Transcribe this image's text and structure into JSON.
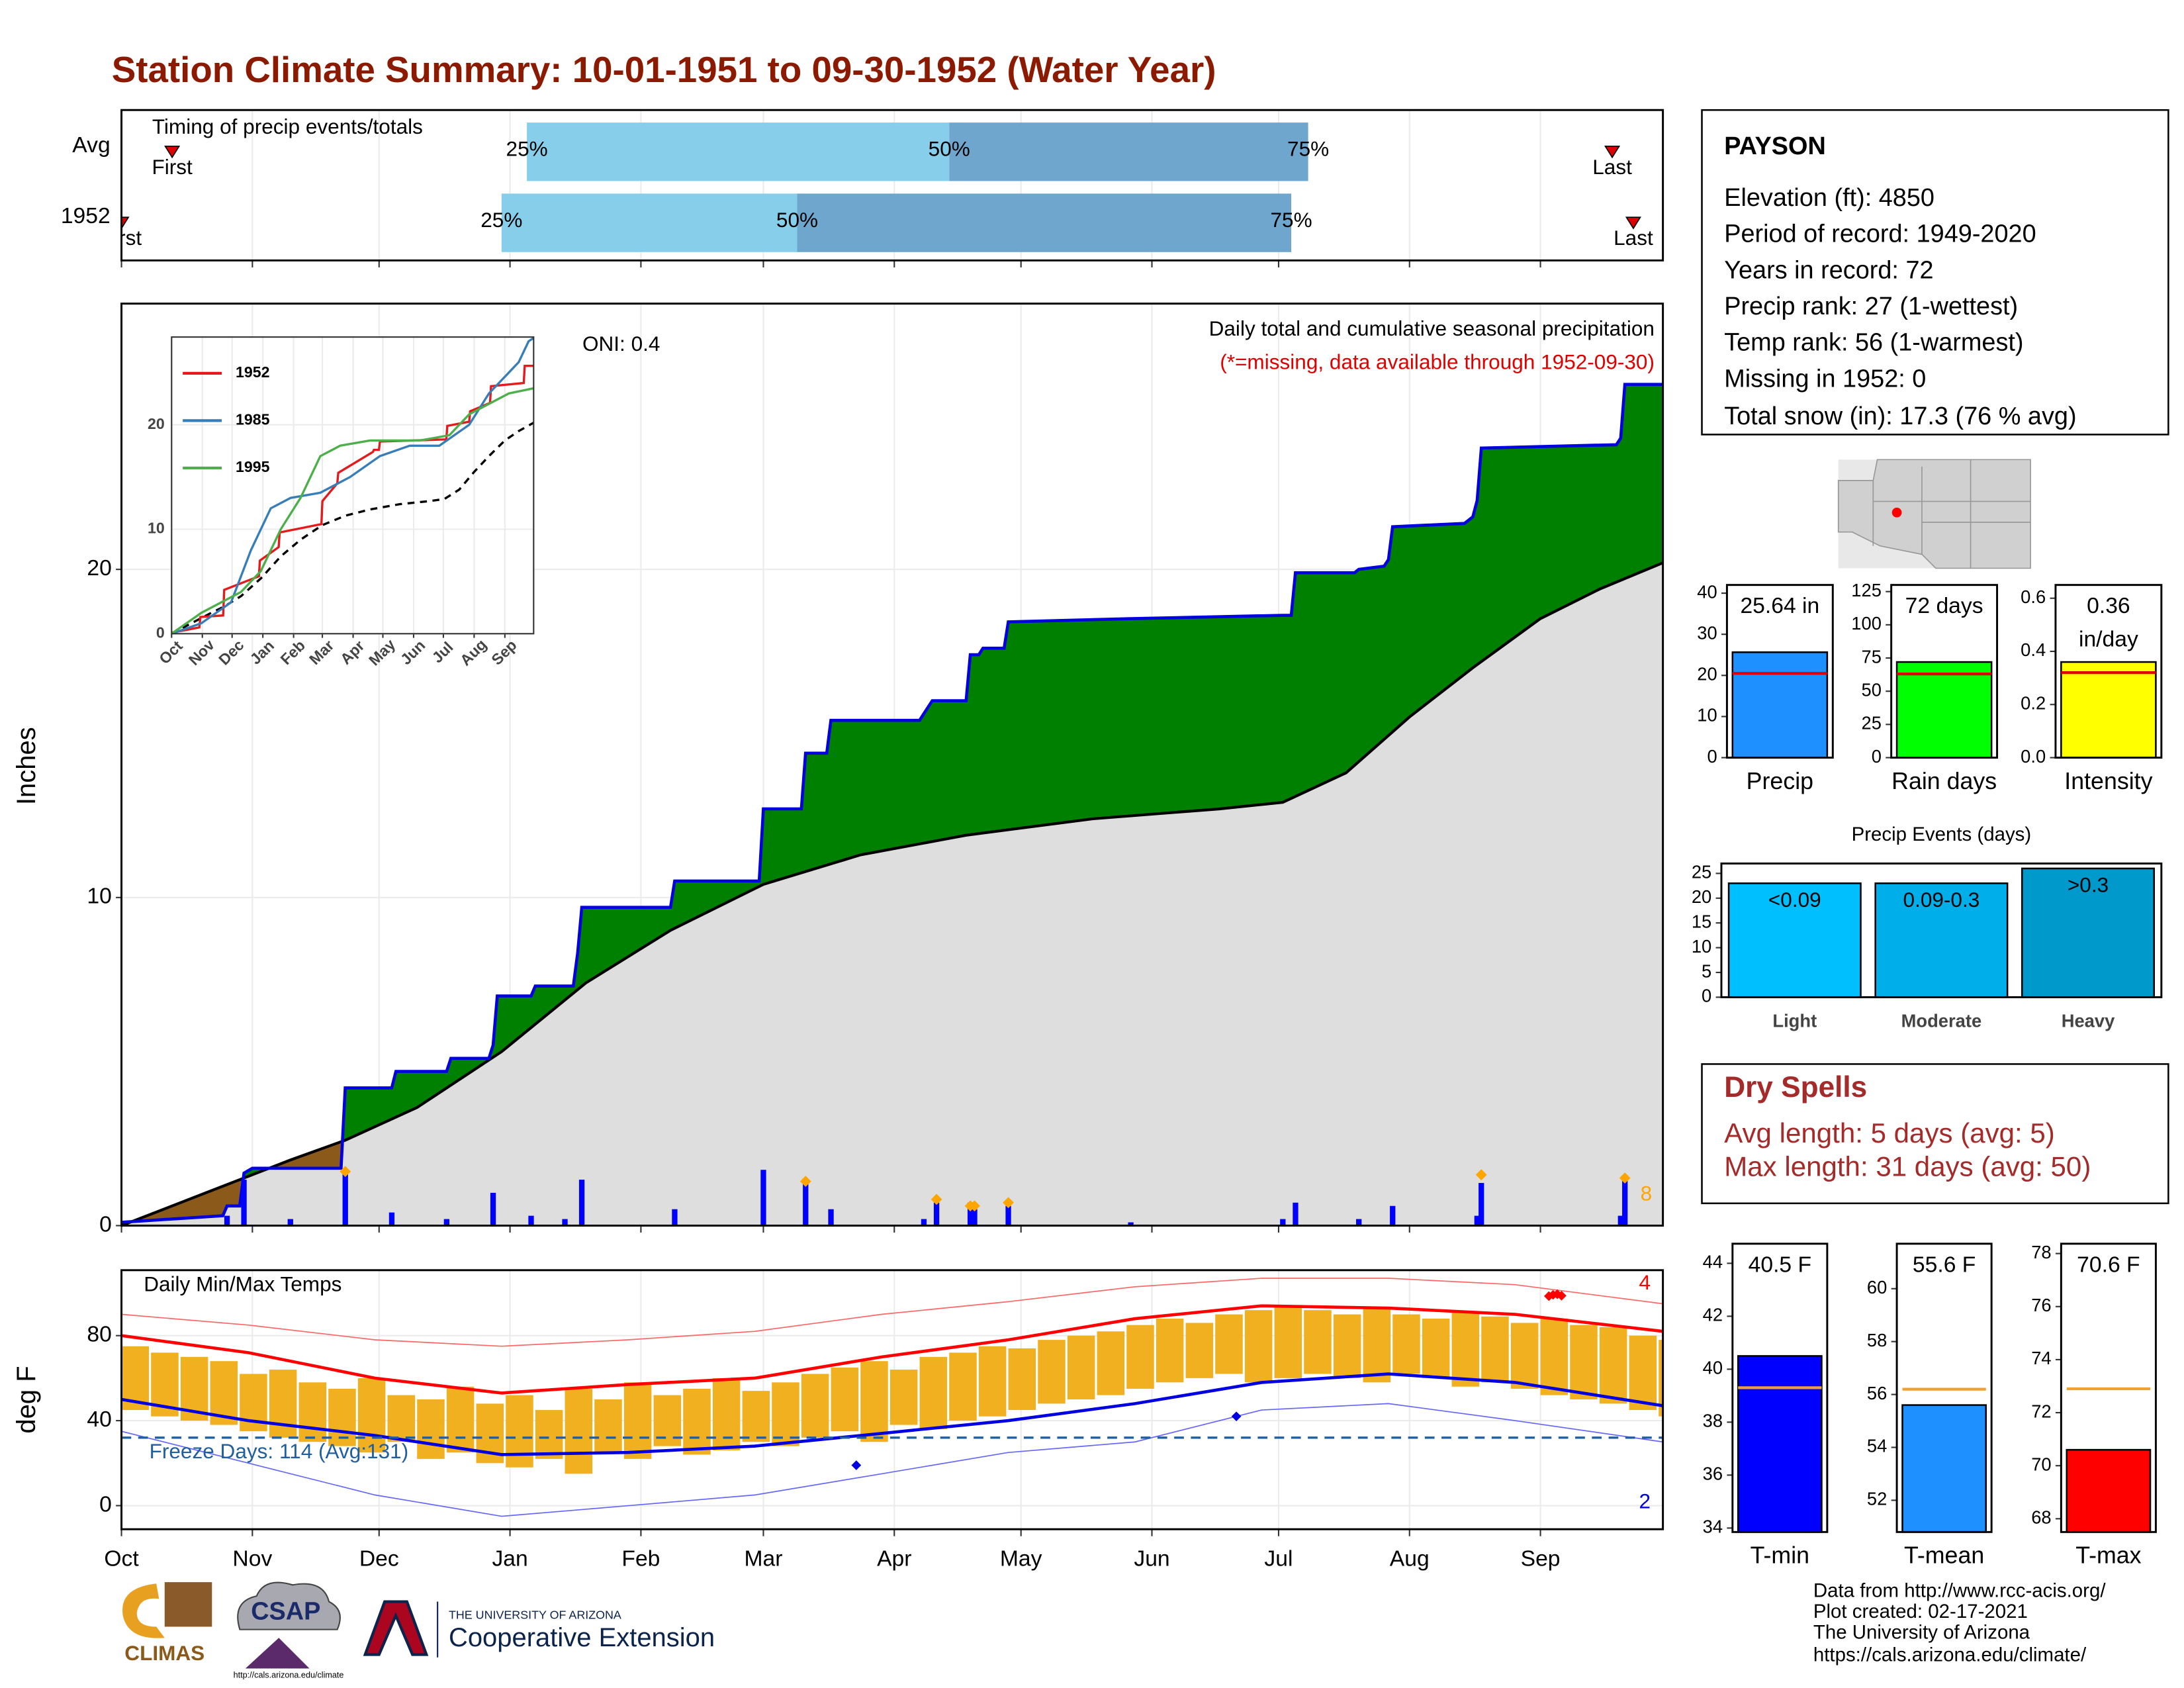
{
  "title": "Station Climate Summary: 10-01-1951 to 09-30-1952 (Water Year)",
  "station": {
    "name": "PAYSON",
    "lines": [
      "Elevation (ft): 4850",
      "Period of record: 1949-2020",
      "Years in record: 72",
      "Precip rank: 27 (1-wettest)",
      "Temp rank: 56 (1-warmest)",
      "Missing in 1952: 0",
      "Total snow (in): 17.3 (76 % avg)"
    ]
  },
  "dry_spells": {
    "title": "Dry Spells",
    "lines": [
      "Avg length: 5 days (avg: 5)",
      "Max length: 31 days (avg: 50)"
    ]
  },
  "footer": [
    "Data from http://www.rcc-acis.org/",
    "Plot created: 02-17-2021",
    "The University of Arizona",
    "https://cals.arizona.edu/climate/"
  ],
  "logos": {
    "climas": "CLIMAS",
    "csap": "CSAP",
    "csap_url": "http://cals.arizona.edu/climate",
    "ua_small": "THE UNIVERSITY OF ARIZONA",
    "ua_big": "Cooperative Extension"
  },
  "chart_data": [
    {
      "type": "timing",
      "title": "Timing of precip events/totals",
      "categories": [
        "Avg",
        "1952"
      ],
      "first": [
        12,
        0
      ],
      "q25": [
        96,
        90
      ],
      "q50": [
        196,
        160
      ],
      "q75": [
        281,
        277
      ],
      "last": [
        353,
        358
      ],
      "quantile_labels": [
        "25%",
        "50%",
        "75%"
      ],
      "end_labels": [
        "First",
        "Last"
      ],
      "colors": [
        "#87ceeb",
        "#6ea6cd"
      ],
      "marker_color": "#e00000",
      "xlim": [
        0,
        365
      ],
      "xticks": [
        0,
        31,
        61,
        92,
        123,
        152,
        183,
        213,
        244,
        274,
        305,
        336
      ],
      "grid": true
    },
    {
      "type": "area",
      "ylabel": "Inches",
      "oni": "ONI: 0.4",
      "subtitle": "Daily total and cumulative seasonal precipitation",
      "note": "(*=missing, data available through 1952-09-30)",
      "count": "8",
      "xlim": [
        0,
        365
      ],
      "xticks": [
        0,
        31,
        61,
        92,
        123,
        152,
        183,
        213,
        244,
        274,
        305,
        336
      ],
      "ylim": [
        0,
        28.1
      ],
      "yticks": [
        0,
        10,
        20
      ],
      "grid": true,
      "cumulative": {
        "color": "#008000",
        "line_color": "#0000e0",
        "x": [
          0,
          24,
          25,
          28,
          29,
          31,
          52,
          53,
          64,
          65,
          77,
          78,
          87,
          88,
          89,
          97,
          98,
          107,
          108,
          109,
          130,
          131,
          151,
          152,
          161,
          162,
          167,
          168,
          189,
          190,
          192,
          200,
          201,
          203,
          204,
          209,
          210,
          239,
          275,
          277,
          278,
          292,
          293,
          299,
          300,
          301,
          318,
          320,
          321,
          322,
          354,
          355,
          356,
          365
        ],
        "values": [
          0.1,
          0.3,
          0.6,
          0.6,
          1.6,
          1.75,
          1.75,
          4.2,
          4.2,
          4.7,
          4.7,
          5.1,
          5.1,
          5.5,
          7.0,
          7.0,
          7.3,
          7.3,
          8.3,
          9.7,
          9.7,
          10.5,
          10.5,
          12.7,
          12.7,
          14.4,
          14.4,
          15.4,
          15.4,
          15.6,
          16.0,
          16.0,
          17.4,
          17.4,
          17.6,
          17.6,
          18.4,
          18.5,
          18.6,
          18.6,
          19.9,
          19.9,
          20.0,
          20.1,
          20.3,
          21.3,
          21.4,
          21.6,
          22.1,
          23.7,
          23.8,
          24.0,
          25.64,
          25.64
        ]
      },
      "average": {
        "color": "#dedede",
        "deficit_color": "#8b5a1a",
        "line_color": "#000000",
        "x": [
          0,
          20,
          40,
          53,
          70,
          90,
          110,
          130,
          152,
          175,
          200,
          230,
          260,
          275,
          290,
          305,
          320,
          336,
          350,
          365
        ],
        "values": [
          0,
          1.0,
          2.0,
          2.6,
          3.6,
          5.3,
          7.4,
          9.0,
          10.4,
          11.3,
          11.9,
          12.4,
          12.7,
          12.9,
          13.8,
          15.5,
          17.0,
          18.5,
          19.4,
          20.2
        ]
      },
      "daily": {
        "color": "#0000ff",
        "x": [
          25,
          29,
          40,
          53,
          64,
          77,
          88,
          97,
          105,
          109,
          131,
          152,
          162,
          168,
          190,
          193,
          201,
          202,
          210,
          239,
          275,
          278,
          293,
          301,
          321,
          322,
          355,
          356
        ],
        "values": [
          0.3,
          1.4,
          0.2,
          1.7,
          0.4,
          0.2,
          1.0,
          0.3,
          0.2,
          1.4,
          0.5,
          1.7,
          1.3,
          0.5,
          0.2,
          0.7,
          0.7,
          0.5,
          0.6,
          0.1,
          0.2,
          0.7,
          0.2,
          0.6,
          0.3,
          1.3,
          0.3,
          1.4
        ]
      },
      "markers": {
        "color": "#ffa500",
        "x": [
          53,
          162,
          193,
          201,
          202,
          210,
          322,
          356
        ],
        "values": [
          1.65,
          1.35,
          0.8,
          0.6,
          0.6,
          0.7,
          1.55,
          1.45
        ]
      }
    },
    {
      "type": "line",
      "xlim": [
        0,
        365
      ],
      "xticks": [
        {
          "value": 0,
          "label": "Oct"
        },
        {
          "value": 31,
          "label": "Nov"
        },
        {
          "value": 61,
          "label": "Dec"
        },
        {
          "value": 92,
          "label": "Jan"
        },
        {
          "value": 123,
          "label": "Feb"
        },
        {
          "value": 152,
          "label": "Mar"
        },
        {
          "value": 183,
          "label": "Apr"
        },
        {
          "value": 213,
          "label": "May"
        },
        {
          "value": 244,
          "label": "Jun"
        },
        {
          "value": 274,
          "label": "Jul"
        },
        {
          "value": 305,
          "label": "Aug"
        },
        {
          "value": 336,
          "label": "Sep"
        }
      ],
      "ylim": [
        0,
        28.4
      ],
      "yticks": [
        0,
        10,
        20
      ],
      "grid": true,
      "series": [
        {
          "name": "1952",
          "color": "#e41a1c",
          "x": [
            0,
            28,
            29,
            52,
            53,
            88,
            89,
            108,
            109,
            151,
            152,
            167,
            168,
            203,
            204,
            209,
            210,
            277,
            278,
            300,
            301,
            321,
            322,
            355,
            356,
            365
          ],
          "values": [
            0.1,
            0.6,
            1.6,
            1.75,
            4.2,
            5.5,
            7.0,
            8.3,
            9.7,
            10.5,
            12.7,
            14.4,
            15.4,
            17.4,
            17.6,
            17.6,
            18.4,
            18.6,
            19.9,
            20.3,
            21.3,
            22.1,
            23.7,
            24.0,
            25.64,
            25.64
          ]
        },
        {
          "name": "1985",
          "color": "#377eb8",
          "x": [
            0,
            30,
            60,
            80,
            100,
            120,
            150,
            180,
            210,
            240,
            270,
            300,
            320,
            340,
            350,
            360,
            365
          ],
          "values": [
            0,
            1,
            3,
            8,
            12,
            13,
            13.5,
            15,
            17,
            18,
            18,
            20,
            23,
            25,
            26,
            28,
            28.3
          ]
        },
        {
          "name": "1995",
          "color": "#4daf4a",
          "x": [
            0,
            30,
            50,
            70,
            90,
            110,
            130,
            150,
            170,
            200,
            250,
            280,
            300,
            320,
            340,
            365
          ],
          "values": [
            0,
            2,
            3,
            4,
            6,
            10,
            13,
            17,
            18,
            18.5,
            18.5,
            19,
            21,
            22,
            23,
            23.5
          ]
        }
      ],
      "average": {
        "color": "#000000",
        "x": [
          0,
          20,
          40,
          53,
          70,
          90,
          110,
          130,
          152,
          175,
          200,
          230,
          260,
          275,
          290,
          305,
          320,
          336,
          350,
          365
        ],
        "values": [
          0,
          1.0,
          2.0,
          2.6,
          3.6,
          5.3,
          7.4,
          9.0,
          10.4,
          11.3,
          11.9,
          12.4,
          12.7,
          12.9,
          13.8,
          15.5,
          17.0,
          18.5,
          19.4,
          20.2
        ]
      }
    },
    {
      "type": "temps",
      "title": "Daily Min/Max Temps",
      "ylabel": "deg F",
      "freeze_label": "Freeze Days: 114 (Avg:131)",
      "max_count": "4",
      "min_count": "2",
      "xlim": [
        0,
        365
      ],
      "xticks": [
        {
          "value": 0,
          "label": "Oct"
        },
        {
          "value": 31,
          "label": "Nov"
        },
        {
          "value": 61,
          "label": "Dec"
        },
        {
          "value": 92,
          "label": "Jan"
        },
        {
          "value": 123,
          "label": "Feb"
        },
        {
          "value": 152,
          "label": "Mar"
        },
        {
          "value": 183,
          "label": "Apr"
        },
        {
          "value": 213,
          "label": "May"
        },
        {
          "value": 244,
          "label": "Jun"
        },
        {
          "value": 274,
          "label": "Jul"
        },
        {
          "value": 305,
          "label": "Aug"
        },
        {
          "value": 336,
          "label": "Sep"
        }
      ],
      "ylim": [
        -11.1,
        110.8
      ],
      "yticks": [
        0,
        40,
        80
      ],
      "grid": true,
      "bars": {
        "color": "#f0b020",
        "x": [
          0,
          7,
          14,
          21,
          28,
          35,
          42,
          49,
          56,
          63,
          70,
          77,
          84,
          91,
          98,
          105,
          112,
          119,
          126,
          133,
          140,
          147,
          154,
          161,
          168,
          175,
          182,
          189,
          196,
          203,
          210,
          217,
          224,
          231,
          238,
          245,
          252,
          259,
          266,
          273,
          280,
          287,
          294,
          301,
          308,
          315,
          322,
          329,
          336,
          343,
          350,
          357,
          364
        ],
        "min": [
          45,
          42,
          40,
          38,
          35,
          32,
          30,
          28,
          25,
          30,
          22,
          25,
          20,
          18,
          22,
          15,
          25,
          22,
          28,
          24,
          26,
          30,
          28,
          32,
          35,
          30,
          38,
          36,
          40,
          42,
          45,
          48,
          50,
          52,
          55,
          58,
          60,
          62,
          58,
          60,
          62,
          60,
          58,
          62,
          60,
          56,
          58,
          55,
          52,
          50,
          48,
          45,
          42
        ],
        "max": [
          75,
          72,
          70,
          68,
          62,
          64,
          58,
          55,
          60,
          52,
          50,
          56,
          48,
          52,
          45,
          55,
          50,
          58,
          52,
          55,
          60,
          54,
          58,
          62,
          65,
          68,
          64,
          70,
          72,
          75,
          74,
          78,
          80,
          82,
          85,
          88,
          86,
          90,
          92,
          94,
          92,
          90,
          93,
          90,
          88,
          91,
          89,
          86,
          88,
          85,
          84,
          80,
          78
        ]
      },
      "avg_max": {
        "color": "#ff0000",
        "x": [
          0,
          30,
          60,
          90,
          120,
          150,
          180,
          210,
          240,
          270,
          300,
          330,
          365
        ],
        "values": [
          80,
          72,
          60,
          53,
          57,
          60,
          70,
          78,
          88,
          94,
          93,
          90,
          82
        ]
      },
      "avg_min": {
        "color": "#0000e0",
        "x": [
          0,
          30,
          60,
          90,
          120,
          150,
          180,
          210,
          240,
          270,
          300,
          330,
          365
        ],
        "values": [
          50,
          40,
          33,
          24,
          25,
          28,
          34,
          40,
          48,
          58,
          62,
          58,
          47
        ]
      },
      "record_max": {
        "color": "#ff6666",
        "x": [
          0,
          30,
          60,
          90,
          120,
          150,
          180,
          210,
          240,
          270,
          300,
          330,
          365
        ],
        "values": [
          90,
          85,
          78,
          75,
          78,
          82,
          90,
          96,
          103,
          107,
          107,
          104,
          95
        ]
      },
      "record_min": {
        "color": "#6666ff",
        "x": [
          0,
          30,
          60,
          90,
          120,
          150,
          180,
          210,
          240,
          270,
          300,
          330,
          365
        ],
        "values": [
          35,
          20,
          5,
          -5,
          0,
          5,
          15,
          25,
          30,
          45,
          48,
          40,
          30
        ]
      },
      "record_high_marks": {
        "color": "#ff0000",
        "x": [
          338,
          339,
          340,
          341
        ],
        "values": [
          98.6,
          99.2,
          99.5,
          98.8
        ]
      },
      "record_low_marks": {
        "color": "#0000e0",
        "x": [
          174,
          264
        ],
        "values": [
          19,
          42
        ]
      },
      "freeze": {
        "value": 32,
        "color": "#1f5fa0"
      }
    },
    {
      "type": "gauge",
      "category": "Precip",
      "value": 25.64,
      "value_label": [
        "25.64 in"
      ],
      "avg": 20.5,
      "color": "#1e90ff",
      "avg_color": "#e00000",
      "ylim": [
        0,
        42
      ],
      "yticks": [
        0,
        10,
        20,
        30,
        40
      ]
    },
    {
      "type": "gauge",
      "category": "Rain days",
      "value": 72,
      "value_label": [
        "72 days"
      ],
      "avg": 63,
      "color": "#00ff00",
      "avg_color": "#e00000",
      "ylim": [
        0,
        130
      ],
      "yticks": [
        0,
        25,
        50,
        75,
        100,
        125
      ]
    },
    {
      "type": "gauge",
      "category": "Intensity",
      "value": 0.36,
      "value_label": [
        "0.36",
        "in/day"
      ],
      "avg": 0.32,
      "color": "#ffff00",
      "avg_color": "#e00000",
      "ylim": [
        0,
        0.65
      ],
      "yticks": [
        {
          "value": 0,
          "label": "0.0"
        },
        0.2,
        0.4,
        0.6
      ]
    },
    {
      "type": "bar",
      "title": "Precip Events (days)",
      "categories": [
        "Light",
        "Moderate",
        "Heavy"
      ],
      "values": [
        23,
        23,
        26
      ],
      "value_labels": [
        "<0.09",
        "0.09-0.3",
        ">0.3"
      ],
      "colors": [
        "#00bfff",
        "#00aeea",
        "#0099cc"
      ],
      "ylim": [
        0,
        27
      ],
      "yticks": [
        0,
        5,
        10,
        15,
        20,
        25
      ]
    },
    {
      "type": "gauge",
      "category": "T-min",
      "value": 40.5,
      "value_label": [
        "40.5 F"
      ],
      "avg": 39.3,
      "color": "#0000ff",
      "avg_color": "#f0a030",
      "ylim": [
        33.85,
        44.74
      ],
      "yticks": [
        34,
        36,
        38,
        40,
        42,
        44
      ]
    },
    {
      "type": "gauge",
      "category": "T-mean",
      "value": 55.6,
      "value_label": [
        "55.6 F"
      ],
      "avg": 56.2,
      "color": "#1e90ff",
      "avg_color": "#f0a030",
      "ylim": [
        50.8,
        61.7
      ],
      "yticks": [
        52,
        54,
        56,
        58,
        60
      ]
    },
    {
      "type": "gauge",
      "category": "T-max",
      "value": 70.6,
      "value_label": [
        "70.6 F"
      ],
      "avg": 72.9,
      "color": "#ff0000",
      "avg_color": "#f0a030",
      "ylim": [
        67.5,
        78.37
      ],
      "yticks": [
        68,
        70,
        72,
        74,
        76,
        78
      ]
    }
  ]
}
